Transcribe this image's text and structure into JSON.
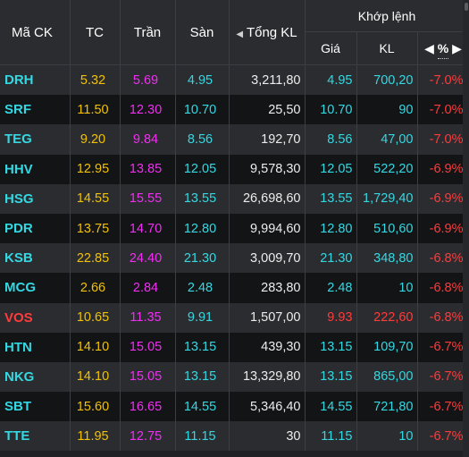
{
  "header": {
    "symbol": "Mã CK",
    "ref": "TC",
    "ceiling": "Trần",
    "floor": "Sàn",
    "total_volume": "Tổng KL",
    "match_group": "Khớp lệnh",
    "match_price": "Giá",
    "match_volume": "KL",
    "match_change": "%"
  },
  "colors": {
    "reference": "#f2c200",
    "ceiling": "#ee2ff0",
    "floor": "#34d8e2",
    "down": "#ff3b3b",
    "neutral": "#ececec",
    "background": "#202125"
  },
  "icons": [
    "sort-left-arrow-icon",
    "sort-left-arrow-icon",
    "sort-right-arrow-icon"
  ],
  "rows": [
    {
      "symbol": "DRH",
      "symbol_color": "floor",
      "tc": "5.32",
      "ceiling": "5.69",
      "floor": "4.95",
      "total_kl": "3,211,80",
      "price": "4.95",
      "price_color": "floor",
      "kl": "700,20",
      "kl_color": "floor",
      "pct": "-7.0%"
    },
    {
      "symbol": "SRF",
      "symbol_color": "floor",
      "tc": "11.50",
      "ceiling": "12.30",
      "floor": "10.70",
      "total_kl": "25,50",
      "price": "10.70",
      "price_color": "floor",
      "kl": "90",
      "kl_color": "floor",
      "pct": "-7.0%"
    },
    {
      "symbol": "TEG",
      "symbol_color": "floor",
      "tc": "9.20",
      "ceiling": "9.84",
      "floor": "8.56",
      "total_kl": "192,70",
      "price": "8.56",
      "price_color": "floor",
      "kl": "47,00",
      "kl_color": "floor",
      "pct": "-7.0%"
    },
    {
      "symbol": "HHV",
      "symbol_color": "floor",
      "tc": "12.95",
      "ceiling": "13.85",
      "floor": "12.05",
      "total_kl": "9,578,30",
      "price": "12.05",
      "price_color": "floor",
      "kl": "522,20",
      "kl_color": "floor",
      "pct": "-6.9%"
    },
    {
      "symbol": "HSG",
      "symbol_color": "floor",
      "tc": "14.55",
      "ceiling": "15.55",
      "floor": "13.55",
      "total_kl": "26,698,60",
      "price": "13.55",
      "price_color": "floor",
      "kl": "1,729,40",
      "kl_color": "floor",
      "pct": "-6.9%"
    },
    {
      "symbol": "PDR",
      "symbol_color": "floor",
      "tc": "13.75",
      "ceiling": "14.70",
      "floor": "12.80",
      "total_kl": "9,994,60",
      "price": "12.80",
      "price_color": "floor",
      "kl": "510,60",
      "kl_color": "floor",
      "pct": "-6.9%"
    },
    {
      "symbol": "KSB",
      "symbol_color": "floor",
      "tc": "22.85",
      "ceiling": "24.40",
      "floor": "21.30",
      "total_kl": "3,009,70",
      "price": "21.30",
      "price_color": "floor",
      "kl": "348,80",
      "kl_color": "floor",
      "pct": "-6.8%"
    },
    {
      "symbol": "MCG",
      "symbol_color": "floor",
      "tc": "2.66",
      "ceiling": "2.84",
      "floor": "2.48",
      "total_kl": "283,80",
      "price": "2.48",
      "price_color": "floor",
      "kl": "10",
      "kl_color": "floor",
      "pct": "-6.8%"
    },
    {
      "symbol": "VOS",
      "symbol_color": "down",
      "tc": "10.65",
      "ceiling": "11.35",
      "floor": "9.91",
      "total_kl": "1,507,00",
      "price": "9.93",
      "price_color": "down",
      "kl": "222,60",
      "kl_color": "down",
      "pct": "-6.8%"
    },
    {
      "symbol": "HTN",
      "symbol_color": "floor",
      "tc": "14.10",
      "ceiling": "15.05",
      "floor": "13.15",
      "total_kl": "439,30",
      "price": "13.15",
      "price_color": "floor",
      "kl": "109,70",
      "kl_color": "floor",
      "pct": "-6.7%"
    },
    {
      "symbol": "NKG",
      "symbol_color": "floor",
      "tc": "14.10",
      "ceiling": "15.05",
      "floor": "13.15",
      "total_kl": "13,329,80",
      "price": "13.15",
      "price_color": "floor",
      "kl": "865,00",
      "kl_color": "floor",
      "pct": "-6.7%"
    },
    {
      "symbol": "SBT",
      "symbol_color": "floor",
      "tc": "15.60",
      "ceiling": "16.65",
      "floor": "14.55",
      "total_kl": "5,346,40",
      "price": "14.55",
      "price_color": "floor",
      "kl": "721,80",
      "kl_color": "floor",
      "pct": "-6.7%"
    },
    {
      "symbol": "TTE",
      "symbol_color": "floor",
      "tc": "11.95",
      "ceiling": "12.75",
      "floor": "11.15",
      "total_kl": "30",
      "price": "11.15",
      "price_color": "floor",
      "kl": "10",
      "kl_color": "floor",
      "pct": "-6.7%"
    }
  ]
}
